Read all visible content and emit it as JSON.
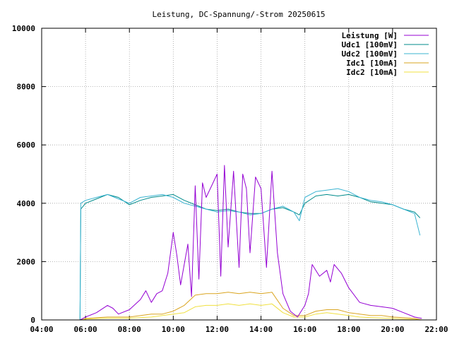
{
  "chart_data": {
    "type": "line",
    "title": "Leistung, DC-Spannung/-Strom 20250615",
    "xlabel": "",
    "ylabel": "",
    "xlim": [
      "04:00",
      "22:00"
    ],
    "ylim": [
      0,
      10000
    ],
    "x_ticks": [
      "04:00",
      "06:00",
      "08:00",
      "10:00",
      "12:00",
      "14:00",
      "16:00",
      "18:00",
      "20:00",
      "22:00"
    ],
    "y_ticks": [
      "0",
      "2000",
      "4000",
      "6000",
      "8000",
      "10000"
    ],
    "grid": true,
    "legend_position": "top-right",
    "series": [
      {
        "name": "Leistung [W]",
        "color": "#9400d3",
        "points": [
          [
            "05:45",
            0
          ],
          [
            "06:00",
            100
          ],
          [
            "06:30",
            250
          ],
          [
            "07:00",
            500
          ],
          [
            "07:15",
            400
          ],
          [
            "07:30",
            200
          ],
          [
            "08:00",
            350
          ],
          [
            "08:30",
            700
          ],
          [
            "08:45",
            1000
          ],
          [
            "09:00",
            600
          ],
          [
            "09:15",
            900
          ],
          [
            "09:30",
            1000
          ],
          [
            "09:45",
            1600
          ],
          [
            "10:00",
            3000
          ],
          [
            "10:10",
            2200
          ],
          [
            "10:20",
            1200
          ],
          [
            "10:40",
            2600
          ],
          [
            "10:50",
            800
          ],
          [
            "11:00",
            4600
          ],
          [
            "11:10",
            1400
          ],
          [
            "11:20",
            4700
          ],
          [
            "11:30",
            4200
          ],
          [
            "11:45",
            4600
          ],
          [
            "12:00",
            5000
          ],
          [
            "12:10",
            1500
          ],
          [
            "12:20",
            5300
          ],
          [
            "12:30",
            2500
          ],
          [
            "12:45",
            5100
          ],
          [
            "13:00",
            1800
          ],
          [
            "13:10",
            5000
          ],
          [
            "13:20",
            4500
          ],
          [
            "13:30",
            2300
          ],
          [
            "13:45",
            4900
          ],
          [
            "14:00",
            4500
          ],
          [
            "14:15",
            1800
          ],
          [
            "14:30",
            5100
          ],
          [
            "14:45",
            2300
          ],
          [
            "15:00",
            900
          ],
          [
            "15:20",
            300
          ],
          [
            "15:40",
            100
          ],
          [
            "16:00",
            500
          ],
          [
            "16:10",
            900
          ],
          [
            "16:20",
            1900
          ],
          [
            "16:40",
            1500
          ],
          [
            "17:00",
            1700
          ],
          [
            "17:10",
            1300
          ],
          [
            "17:20",
            1900
          ],
          [
            "17:40",
            1600
          ],
          [
            "18:00",
            1100
          ],
          [
            "18:30",
            600
          ],
          [
            "19:00",
            500
          ],
          [
            "19:30",
            450
          ],
          [
            "20:00",
            400
          ],
          [
            "20:30",
            250
          ],
          [
            "21:00",
            100
          ],
          [
            "21:20",
            50
          ]
        ]
      },
      {
        "name": "Udc1 [100mV]",
        "color": "#008b8b",
        "points": [
          [
            "05:45",
            0
          ],
          [
            "05:47",
            3800
          ],
          [
            "06:00",
            4000
          ],
          [
            "06:30",
            4150
          ],
          [
            "07:00",
            4300
          ],
          [
            "07:30",
            4200
          ],
          [
            "08:00",
            3950
          ],
          [
            "08:30",
            4100
          ],
          [
            "09:00",
            4200
          ],
          [
            "09:30",
            4250
          ],
          [
            "10:00",
            4300
          ],
          [
            "10:30",
            4100
          ],
          [
            "11:00",
            3950
          ],
          [
            "11:30",
            3800
          ],
          [
            "12:00",
            3750
          ],
          [
            "12:30",
            3800
          ],
          [
            "13:00",
            3700
          ],
          [
            "13:30",
            3650
          ],
          [
            "14:00",
            3650
          ],
          [
            "14:30",
            3800
          ],
          [
            "15:00",
            3850
          ],
          [
            "15:30",
            3700
          ],
          [
            "15:45",
            3600
          ],
          [
            "16:00",
            4000
          ],
          [
            "16:30",
            4250
          ],
          [
            "17:00",
            4300
          ],
          [
            "17:30",
            4250
          ],
          [
            "18:00",
            4300
          ],
          [
            "18:30",
            4200
          ],
          [
            "19:00",
            4050
          ],
          [
            "19:30",
            4000
          ],
          [
            "20:00",
            3950
          ],
          [
            "20:30",
            3800
          ],
          [
            "21:00",
            3700
          ],
          [
            "21:15",
            3500
          ]
        ]
      },
      {
        "name": "Udc2 [100mV]",
        "color": "#3bb4d2",
        "points": [
          [
            "05:45",
            0
          ],
          [
            "05:47",
            4000
          ],
          [
            "06:00",
            4100
          ],
          [
            "06:30",
            4200
          ],
          [
            "07:00",
            4300
          ],
          [
            "07:30",
            4150
          ],
          [
            "08:00",
            4000
          ],
          [
            "08:30",
            4200
          ],
          [
            "09:00",
            4250
          ],
          [
            "09:30",
            4300
          ],
          [
            "10:00",
            4200
          ],
          [
            "10:30",
            4000
          ],
          [
            "11:00",
            3900
          ],
          [
            "11:30",
            3800
          ],
          [
            "12:00",
            3700
          ],
          [
            "12:30",
            3750
          ],
          [
            "13:00",
            3700
          ],
          [
            "13:30",
            3600
          ],
          [
            "14:00",
            3650
          ],
          [
            "14:30",
            3800
          ],
          [
            "15:00",
            3900
          ],
          [
            "15:30",
            3700
          ],
          [
            "15:45",
            3400
          ],
          [
            "16:00",
            4200
          ],
          [
            "16:30",
            4400
          ],
          [
            "17:00",
            4450
          ],
          [
            "17:30",
            4500
          ],
          [
            "18:00",
            4400
          ],
          [
            "18:30",
            4200
          ],
          [
            "19:00",
            4100
          ],
          [
            "19:30",
            4050
          ],
          [
            "20:00",
            3950
          ],
          [
            "20:30",
            3800
          ],
          [
            "21:00",
            3650
          ],
          [
            "21:15",
            2900
          ]
        ]
      },
      {
        "name": "Idc1 [10mA]",
        "color": "#daa520",
        "points": [
          [
            "05:50",
            0
          ],
          [
            "06:00",
            50
          ],
          [
            "07:00",
            100
          ],
          [
            "08:00",
            100
          ],
          [
            "09:00",
            200
          ],
          [
            "09:30",
            200
          ],
          [
            "10:00",
            300
          ],
          [
            "10:30",
            500
          ],
          [
            "11:00",
            850
          ],
          [
            "11:30",
            900
          ],
          [
            "12:00",
            900
          ],
          [
            "12:30",
            950
          ],
          [
            "13:00",
            900
          ],
          [
            "13:30",
            950
          ],
          [
            "14:00",
            900
          ],
          [
            "14:30",
            950
          ],
          [
            "15:00",
            400
          ],
          [
            "15:30",
            150
          ],
          [
            "16:00",
            150
          ],
          [
            "16:30",
            300
          ],
          [
            "17:00",
            350
          ],
          [
            "17:30",
            350
          ],
          [
            "18:00",
            250
          ],
          [
            "18:30",
            200
          ],
          [
            "19:00",
            150
          ],
          [
            "19:30",
            150
          ],
          [
            "20:00",
            100
          ],
          [
            "20:30",
            80
          ],
          [
            "21:00",
            50
          ],
          [
            "21:20",
            0
          ]
        ]
      },
      {
        "name": "Idc2 [10mA]",
        "color": "#f0e040",
        "points": [
          [
            "05:50",
            0
          ],
          [
            "06:00",
            30
          ],
          [
            "07:00",
            60
          ],
          [
            "08:00",
            60
          ],
          [
            "09:00",
            100
          ],
          [
            "10:00",
            200
          ],
          [
            "10:30",
            250
          ],
          [
            "11:00",
            450
          ],
          [
            "11:30",
            500
          ],
          [
            "12:00",
            500
          ],
          [
            "12:30",
            550
          ],
          [
            "13:00",
            500
          ],
          [
            "13:30",
            550
          ],
          [
            "14:00",
            500
          ],
          [
            "14:30",
            550
          ],
          [
            "15:00",
            250
          ],
          [
            "15:30",
            100
          ],
          [
            "16:00",
            100
          ],
          [
            "16:30",
            200
          ],
          [
            "17:00",
            250
          ],
          [
            "17:30",
            200
          ],
          [
            "18:00",
            150
          ],
          [
            "18:30",
            100
          ],
          [
            "19:00",
            80
          ],
          [
            "20:00",
            50
          ],
          [
            "21:00",
            20
          ],
          [
            "21:20",
            0
          ]
        ]
      }
    ]
  }
}
